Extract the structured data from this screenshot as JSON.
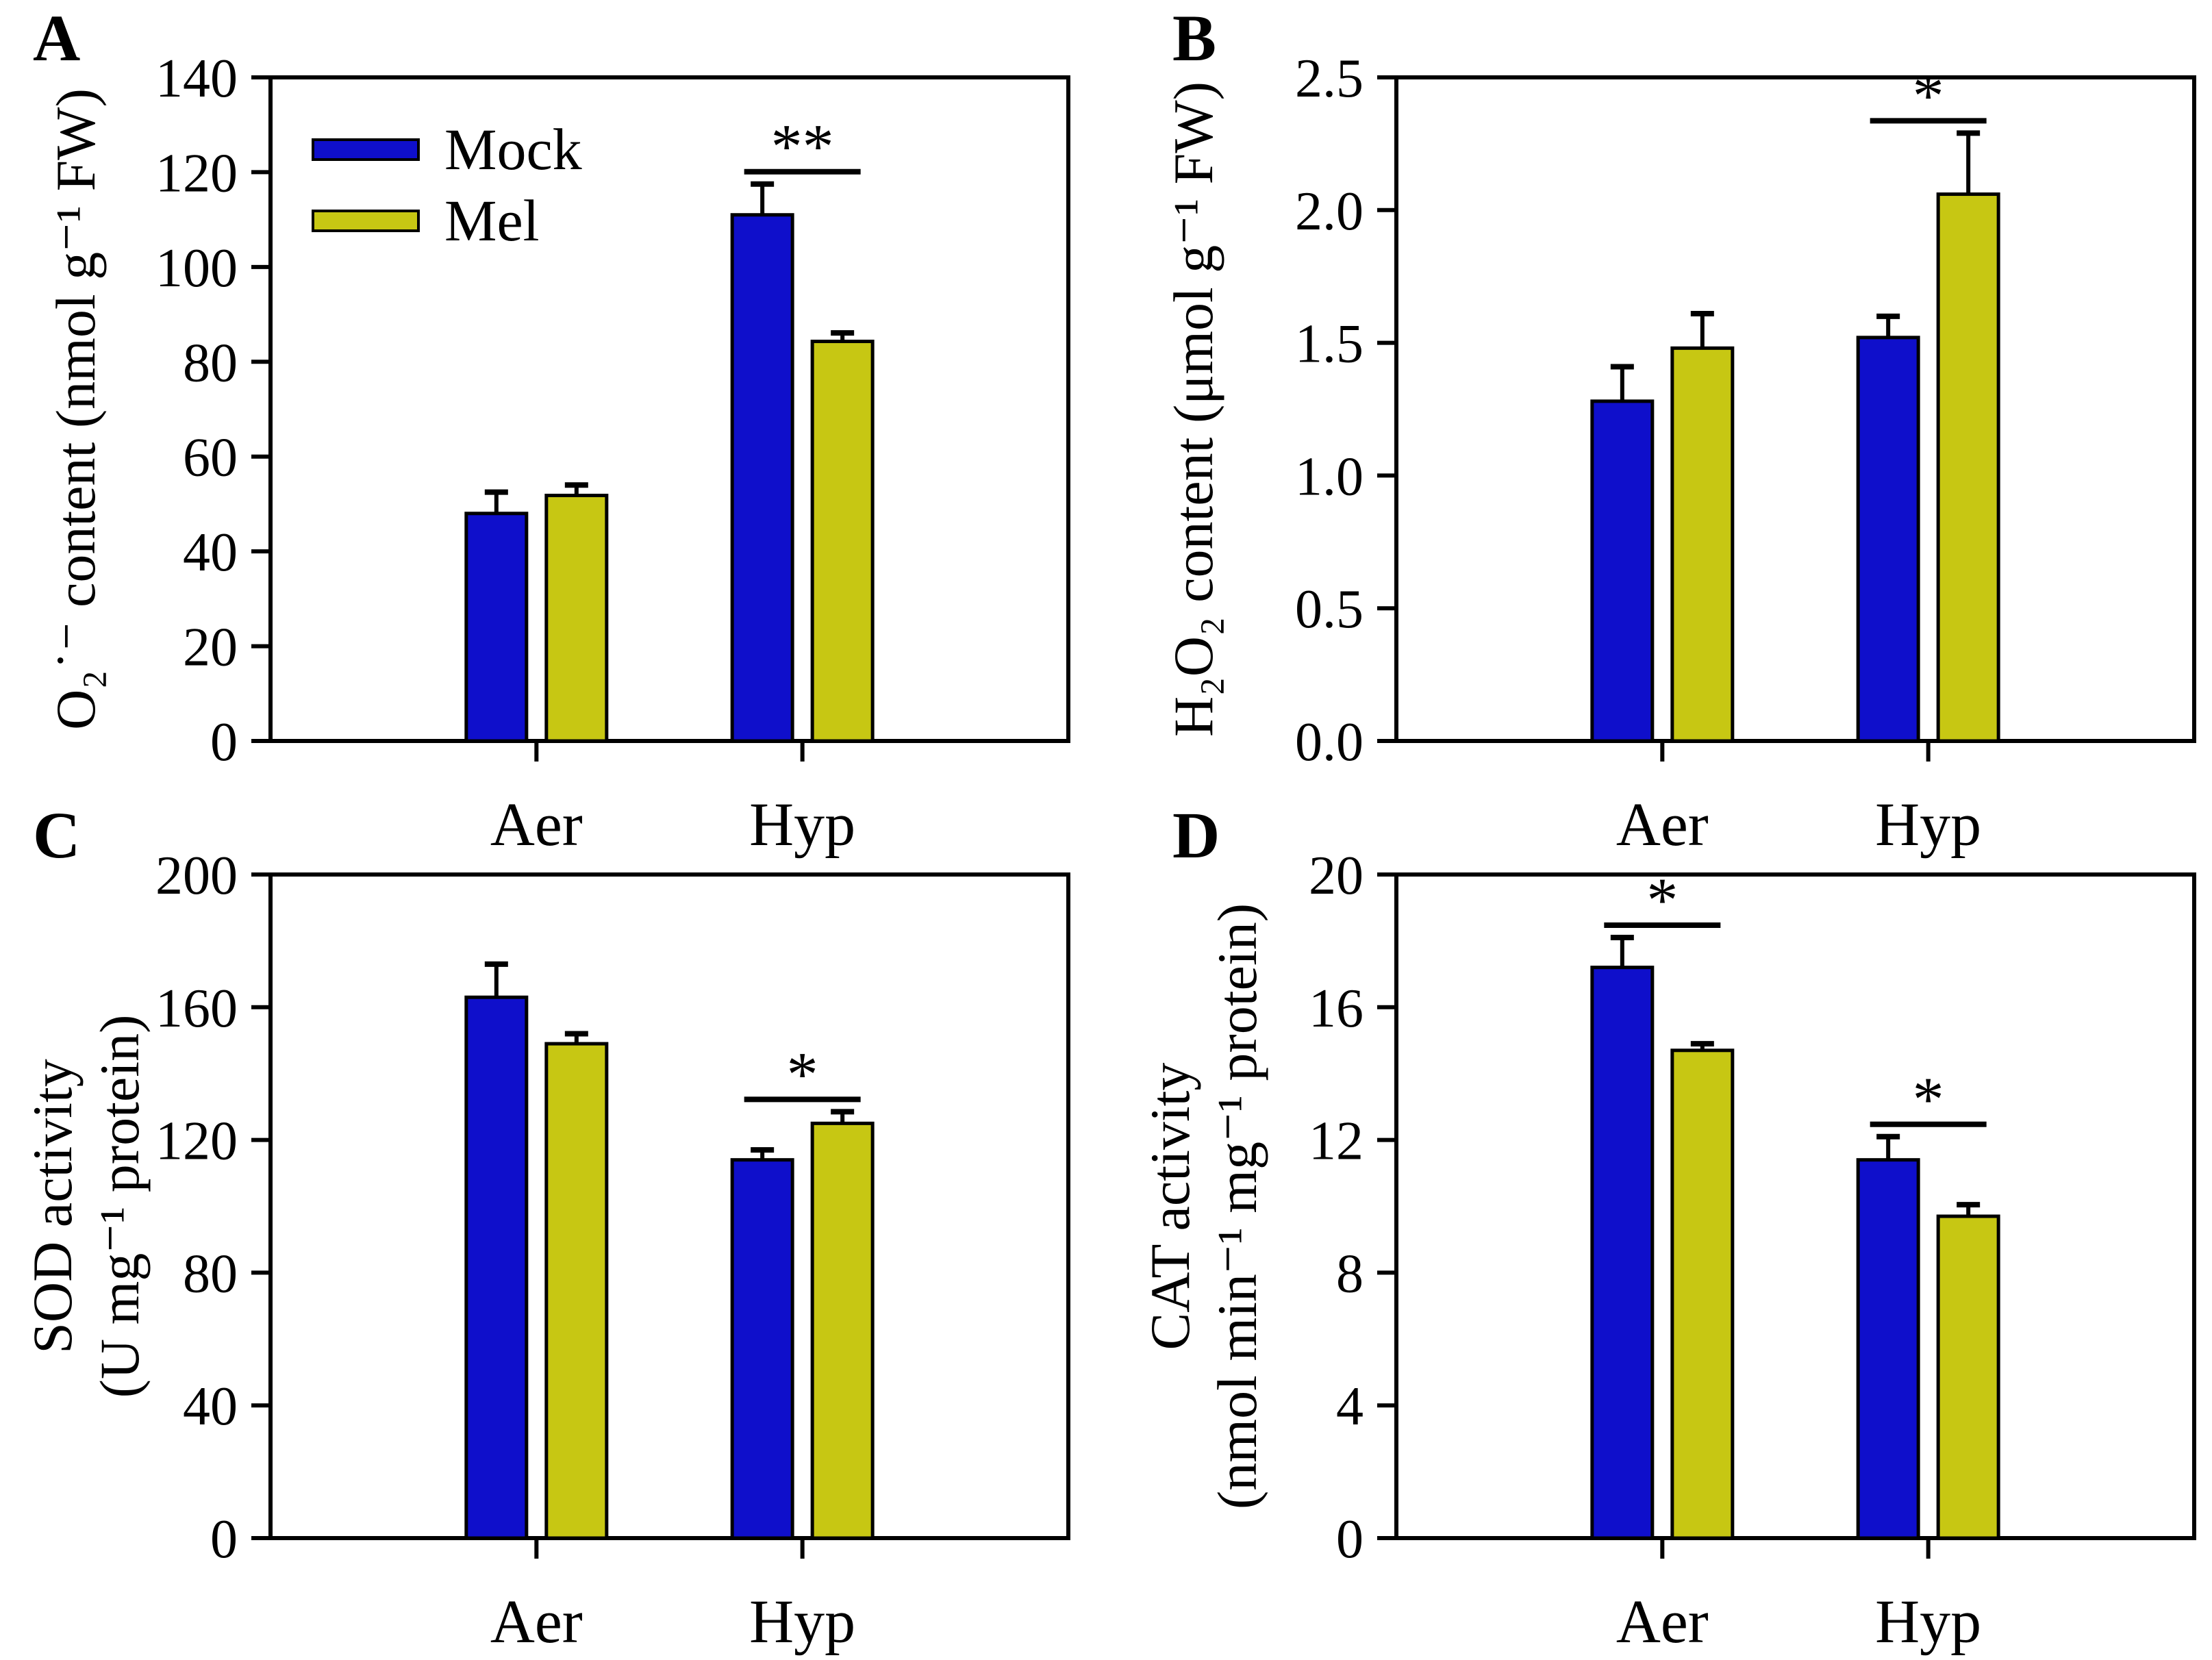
{
  "figure": {
    "background": "#ffffff",
    "panel_letters": [
      "A",
      "B",
      "C",
      "D"
    ]
  },
  "colors": {
    "mock": "#0f0fcb",
    "mel": "#c7c713",
    "axis": "#000000"
  },
  "legend": {
    "items": [
      {
        "label": "Mock",
        "color_key": "mock"
      },
      {
        "label": "Mel",
        "color_key": "mel"
      }
    ]
  },
  "chart_data": {
    "type": "bar",
    "categories": [
      "Aer",
      "Hyp"
    ],
    "grid": false,
    "legend_position": "top-left of panel A",
    "panels": [
      {
        "id": "A",
        "letter": "A",
        "ylabel_lines": [
          "O₂˙⁻ content (nmol g⁻¹ FW)"
        ],
        "ylim": [
          0,
          140
        ],
        "ytick_step": 20,
        "ytick_decimals": 0,
        "series": [
          {
            "name": "Mock",
            "values": [
              48,
              111
            ],
            "errors": [
              4.5,
              6.5
            ]
          },
          {
            "name": "Mel",
            "values": [
              51.8,
              84.3
            ],
            "errors": [
              2.2,
              1.8
            ]
          }
        ],
        "significance": [
          {
            "category": "Hyp",
            "marker": "**"
          }
        ]
      },
      {
        "id": "B",
        "letter": "B",
        "ylabel_lines": [
          "H₂O₂ content (μmol g⁻¹ FW)"
        ],
        "ylim": [
          0,
          2.5
        ],
        "ytick_step": 0.5,
        "ytick_decimals": 1,
        "series": [
          {
            "name": "Mock",
            "values": [
              1.28,
              1.52
            ],
            "errors": [
              0.13,
              0.08
            ]
          },
          {
            "name": "Mel",
            "values": [
              1.48,
              2.06
            ],
            "errors": [
              0.13,
              0.23
            ]
          }
        ],
        "significance": [
          {
            "category": "Hyp",
            "marker": "*"
          }
        ]
      },
      {
        "id": "C",
        "letter": "C",
        "ylabel_lines": [
          "SOD activity",
          "(U mg⁻¹ protein)"
        ],
        "ylim": [
          0,
          200
        ],
        "ytick_step": 40,
        "ytick_decimals": 0,
        "series": [
          {
            "name": "Mock",
            "values": [
              163,
              114
            ],
            "errors": [
              10,
              3
            ]
          },
          {
            "name": "Mel",
            "values": [
              149,
              125
            ],
            "errors": [
              3,
              3.5
            ]
          }
        ],
        "significance": [
          {
            "category": "Hyp",
            "marker": "*"
          }
        ]
      },
      {
        "id": "D",
        "letter": "D",
        "ylabel_lines": [
          "CAT activity",
          "(nmol min⁻¹ mg⁻¹ protein)"
        ],
        "ylim": [
          0,
          20
        ],
        "ytick_step": 4,
        "ytick_decimals": 0,
        "series": [
          {
            "name": "Mock",
            "values": [
              17.2,
              11.4
            ],
            "errors": [
              0.9,
              0.7
            ]
          },
          {
            "name": "Mel",
            "values": [
              14.7,
              9.7
            ],
            "errors": [
              0.2,
              0.35
            ]
          }
        ],
        "significance": [
          {
            "category": "Aer",
            "marker": "*"
          },
          {
            "category": "Hyp",
            "marker": "*"
          }
        ]
      }
    ]
  }
}
